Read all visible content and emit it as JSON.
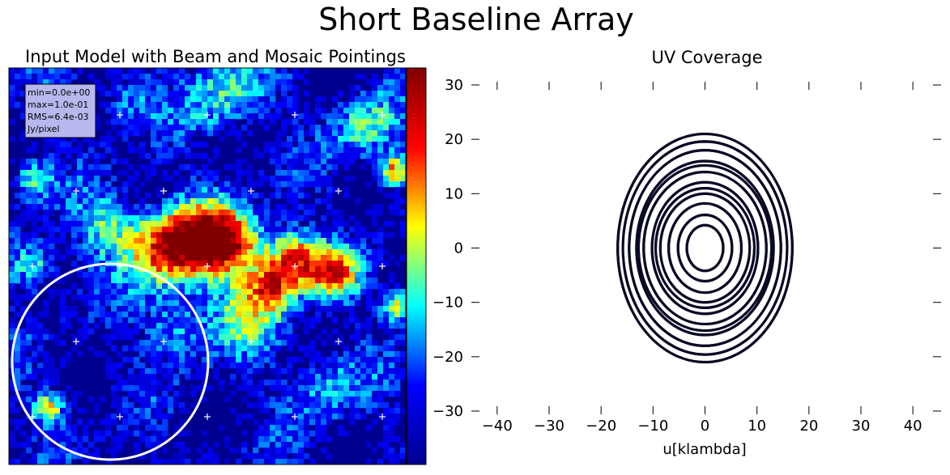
{
  "figure": {
    "title": "Short Baseline Array"
  },
  "chart_data": [
    {
      "type": "heatmap",
      "title": "Input Model with Beam and Mosaic Pointings",
      "stats": [
        "min=0.0e+00",
        "max=1.0e-01",
        "RMS=6.4e-03",
        "Jy/pixel"
      ],
      "colormap": "jet",
      "colormap_stops": [
        "#00008f",
        "#0000ff",
        "#00ffff",
        "#ffff00",
        "#ff0000",
        "#800000"
      ],
      "value_range": [
        0.0,
        0.1
      ],
      "pointing_marker_color": "#ffffff",
      "beam_circle_color": "#ffffff",
      "pointing_rows": 5,
      "pointing_cols": 5,
      "colorbar": true,
      "ticks_labeled": false
    },
    {
      "type": "scatter",
      "title": "UV Coverage",
      "xlabel": "u[klambda]",
      "ylabel": "",
      "xlim": [
        -42,
        42
      ],
      "ylim": [
        -30,
        30
      ],
      "xticks": [
        "−40",
        "−30",
        "−20",
        "−10",
        "0",
        "10",
        "20",
        "30",
        "40"
      ],
      "xtick_values": [
        -40,
        -30,
        -20,
        -10,
        0,
        10,
        20,
        30,
        40
      ],
      "yticks": [
        "30",
        "20",
        "10",
        "0",
        "−10",
        "−20",
        "−30"
      ],
      "ytick_values": [
        30,
        20,
        10,
        0,
        -10,
        -20,
        -30
      ],
      "marker_color": "#0a0a25",
      "tracks": [
        {
          "a": 3.5,
          "b": 4.2,
          "phase": 0.3,
          "span": 6.28
        },
        {
          "a": 5.2,
          "b": 6.1,
          "phase": 1.1,
          "span": 5.8
        },
        {
          "a": 7.0,
          "b": 8.2,
          "phase": 2.0,
          "span": 5.6
        },
        {
          "a": 8.6,
          "b": 10.0,
          "phase": 0.7,
          "span": 5.4
        },
        {
          "a": 10.2,
          "b": 12.1,
          "phase": 3.0,
          "span": 5.7
        },
        {
          "a": 11.8,
          "b": 14.0,
          "phase": 1.7,
          "span": 5.5
        },
        {
          "a": 13.2,
          "b": 16.0,
          "phase": 4.0,
          "span": 5.3
        },
        {
          "a": 14.6,
          "b": 18.0,
          "phase": 2.6,
          "span": 5.6
        },
        {
          "a": 15.8,
          "b": 19.6,
          "phase": 0.2,
          "span": 5.2
        },
        {
          "a": 16.8,
          "b": 21.0,
          "phase": 5.0,
          "span": 5.0
        },
        {
          "a": 9.5,
          "b": 11.0,
          "phase": 4.6,
          "span": 4.8
        },
        {
          "a": 12.8,
          "b": 15.2,
          "phase": 5.6,
          "span": 4.6
        }
      ]
    }
  ]
}
